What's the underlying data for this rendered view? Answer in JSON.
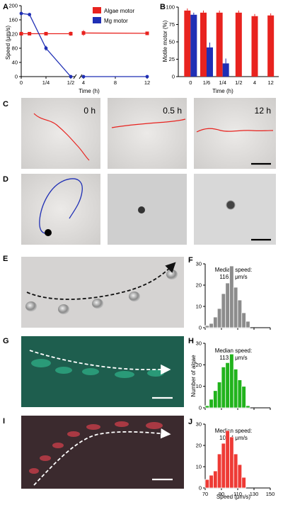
{
  "panel_labels": {
    "A": "A",
    "B": "B",
    "C": "C",
    "D": "D",
    "E": "E",
    "F": "F",
    "G": "G",
    "H": "H",
    "I": "I",
    "J": "J"
  },
  "legend": {
    "algae": "Algae motor",
    "mg": "Mg motor"
  },
  "colors": {
    "algae": "#e8231f",
    "mg": "#1f2fb5",
    "gray": "#8c8c8c",
    "green": "#21b31c",
    "red": "#ee3a35",
    "green_bg": "#1f6b57",
    "red_bg": "#3b2a2e"
  },
  "time_labels_C": [
    "0 h",
    "0.5 h",
    "12 h"
  ],
  "median_labels": {
    "F": {
      "title": "Median speed:",
      "value": "116.8 μm/s"
    },
    "H": {
      "title": "Median speed:",
      "value": "113.6 μm/s"
    },
    "J": {
      "title": "Median speed:",
      "value": "104.4 μm/s"
    }
  },
  "hist_ylabel": "Number of algae",
  "hist_xlabel": "Speed (μm/s)",
  "chart_data": [
    {
      "panel": "A",
      "type": "line",
      "ylabel": "Speed (μm/s)",
      "xlabel": "Time (h)",
      "x_ticks": [
        "0",
        "1/4",
        "1/2",
        "4",
        "8",
        "12"
      ],
      "y_ticks": [
        0,
        40,
        80,
        120,
        160,
        200
      ],
      "ylim": [
        0,
        200
      ],
      "series": [
        {
          "name": "Algae motor",
          "x": [
            "0",
            "1/12",
            "1/4",
            "1/2",
            "4",
            "12"
          ],
          "y": [
            121,
            121,
            121,
            121,
            123,
            122
          ]
        },
        {
          "name": "Mg motor",
          "x": [
            "0",
            "1/12",
            "1/4",
            "1/2",
            "4",
            "12"
          ],
          "y": [
            178,
            175,
            80,
            0,
            0,
            0
          ]
        }
      ]
    },
    {
      "panel": "B",
      "type": "bar",
      "ylabel": "Motile motor (%)",
      "xlabel": "Time (h)",
      "categories": [
        "0",
        "1/6",
        "1/4",
        "1/2",
        "4",
        "12"
      ],
      "y_ticks": [
        0,
        25,
        50,
        75,
        100
      ],
      "ylim": [
        0,
        100
      ],
      "series": [
        {
          "name": "Algae motor",
          "values": [
            95,
            92,
            92,
            92,
            87,
            88
          ]
        },
        {
          "name": "Mg motor",
          "values": [
            89,
            42,
            19,
            null,
            null,
            null
          ]
        }
      ]
    },
    {
      "panel": "F",
      "type": "bar",
      "x_ticks": [
        70,
        90,
        110,
        130,
        150
      ],
      "y_ticks": [
        0,
        10,
        20,
        30
      ],
      "ylim": [
        0,
        30
      ],
      "bins_start": 70,
      "bin_width": 5,
      "values": [
        1,
        2,
        5,
        9,
        16,
        21,
        29,
        19,
        13,
        7,
        3
      ]
    },
    {
      "panel": "H",
      "type": "bar",
      "x_ticks": [
        70,
        90,
        110,
        130,
        150
      ],
      "y_ticks": [
        0,
        10,
        20,
        30
      ],
      "ylim": [
        0,
        30
      ],
      "bins_start": 70,
      "bin_width": 5,
      "values": [
        1,
        4,
        8,
        12,
        19,
        21,
        25,
        18,
        13,
        10,
        1
      ]
    },
    {
      "panel": "J",
      "type": "bar",
      "x_ticks": [
        70,
        90,
        110,
        130,
        150
      ],
      "y_ticks": [
        0,
        10,
        20,
        30
      ],
      "ylim": [
        0,
        30
      ],
      "bins_start": 70,
      "bin_width": 5,
      "values": [
        4,
        6,
        8,
        16,
        21,
        27,
        24,
        16,
        11,
        5
      ]
    }
  ]
}
